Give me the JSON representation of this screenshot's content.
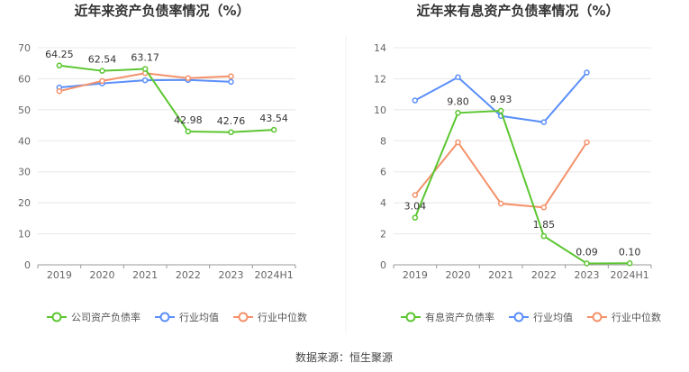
{
  "colors": {
    "company": "#5cc631",
    "avg": "#5b8ff9",
    "median": "#f4916a",
    "grid": "#e8e8e8",
    "axis": "#999999"
  },
  "source_text": "数据来源：恒生聚源",
  "chart_data": [
    {
      "type": "line",
      "title": "近年来资产负债率情况（%）",
      "categories": [
        "2019",
        "2020",
        "2021",
        "2022",
        "2023",
        "2024H1"
      ],
      "ylim": [
        0,
        70
      ],
      "yticks": [
        "0",
        "10",
        "20",
        "30",
        "40",
        "50",
        "60",
        "70"
      ],
      "series": [
        {
          "name": "公司资产负债率",
          "key": "company",
          "values": [
            64.25,
            62.54,
            63.17,
            42.98,
            42.76,
            43.54
          ],
          "labels": [
            "64.25",
            "62.54",
            "63.17",
            "42.98",
            "42.76",
            "43.54"
          ]
        },
        {
          "name": "行业均值",
          "key": "avg",
          "values": [
            57.2,
            58.5,
            59.5,
            59.6,
            59.0,
            null
          ]
        },
        {
          "name": "行业中位数",
          "key": "median",
          "values": [
            56.0,
            59.3,
            61.8,
            60.2,
            60.8,
            null
          ]
        }
      ]
    },
    {
      "type": "line",
      "title": "近年来有息资产负债率情况（%）",
      "categories": [
        "2019",
        "2020",
        "2021",
        "2022",
        "2023",
        "2024H1"
      ],
      "ylim": [
        0,
        14
      ],
      "yticks": [
        "0",
        "2",
        "4",
        "6",
        "8",
        "10",
        "12",
        "14"
      ],
      "series": [
        {
          "name": "有息资产负债率",
          "key": "company",
          "values": [
            3.04,
            9.8,
            9.93,
            1.85,
            0.09,
            0.1
          ],
          "labels": [
            "3.04",
            "9.80",
            "9.93",
            "1.85",
            "0.09",
            "0.10"
          ]
        },
        {
          "name": "行业均值",
          "key": "avg",
          "values": [
            10.6,
            12.1,
            9.6,
            9.2,
            12.4,
            null
          ]
        },
        {
          "name": "行业中位数",
          "key": "median",
          "values": [
            4.5,
            7.9,
            3.95,
            3.7,
            7.9,
            null
          ]
        }
      ]
    }
  ]
}
